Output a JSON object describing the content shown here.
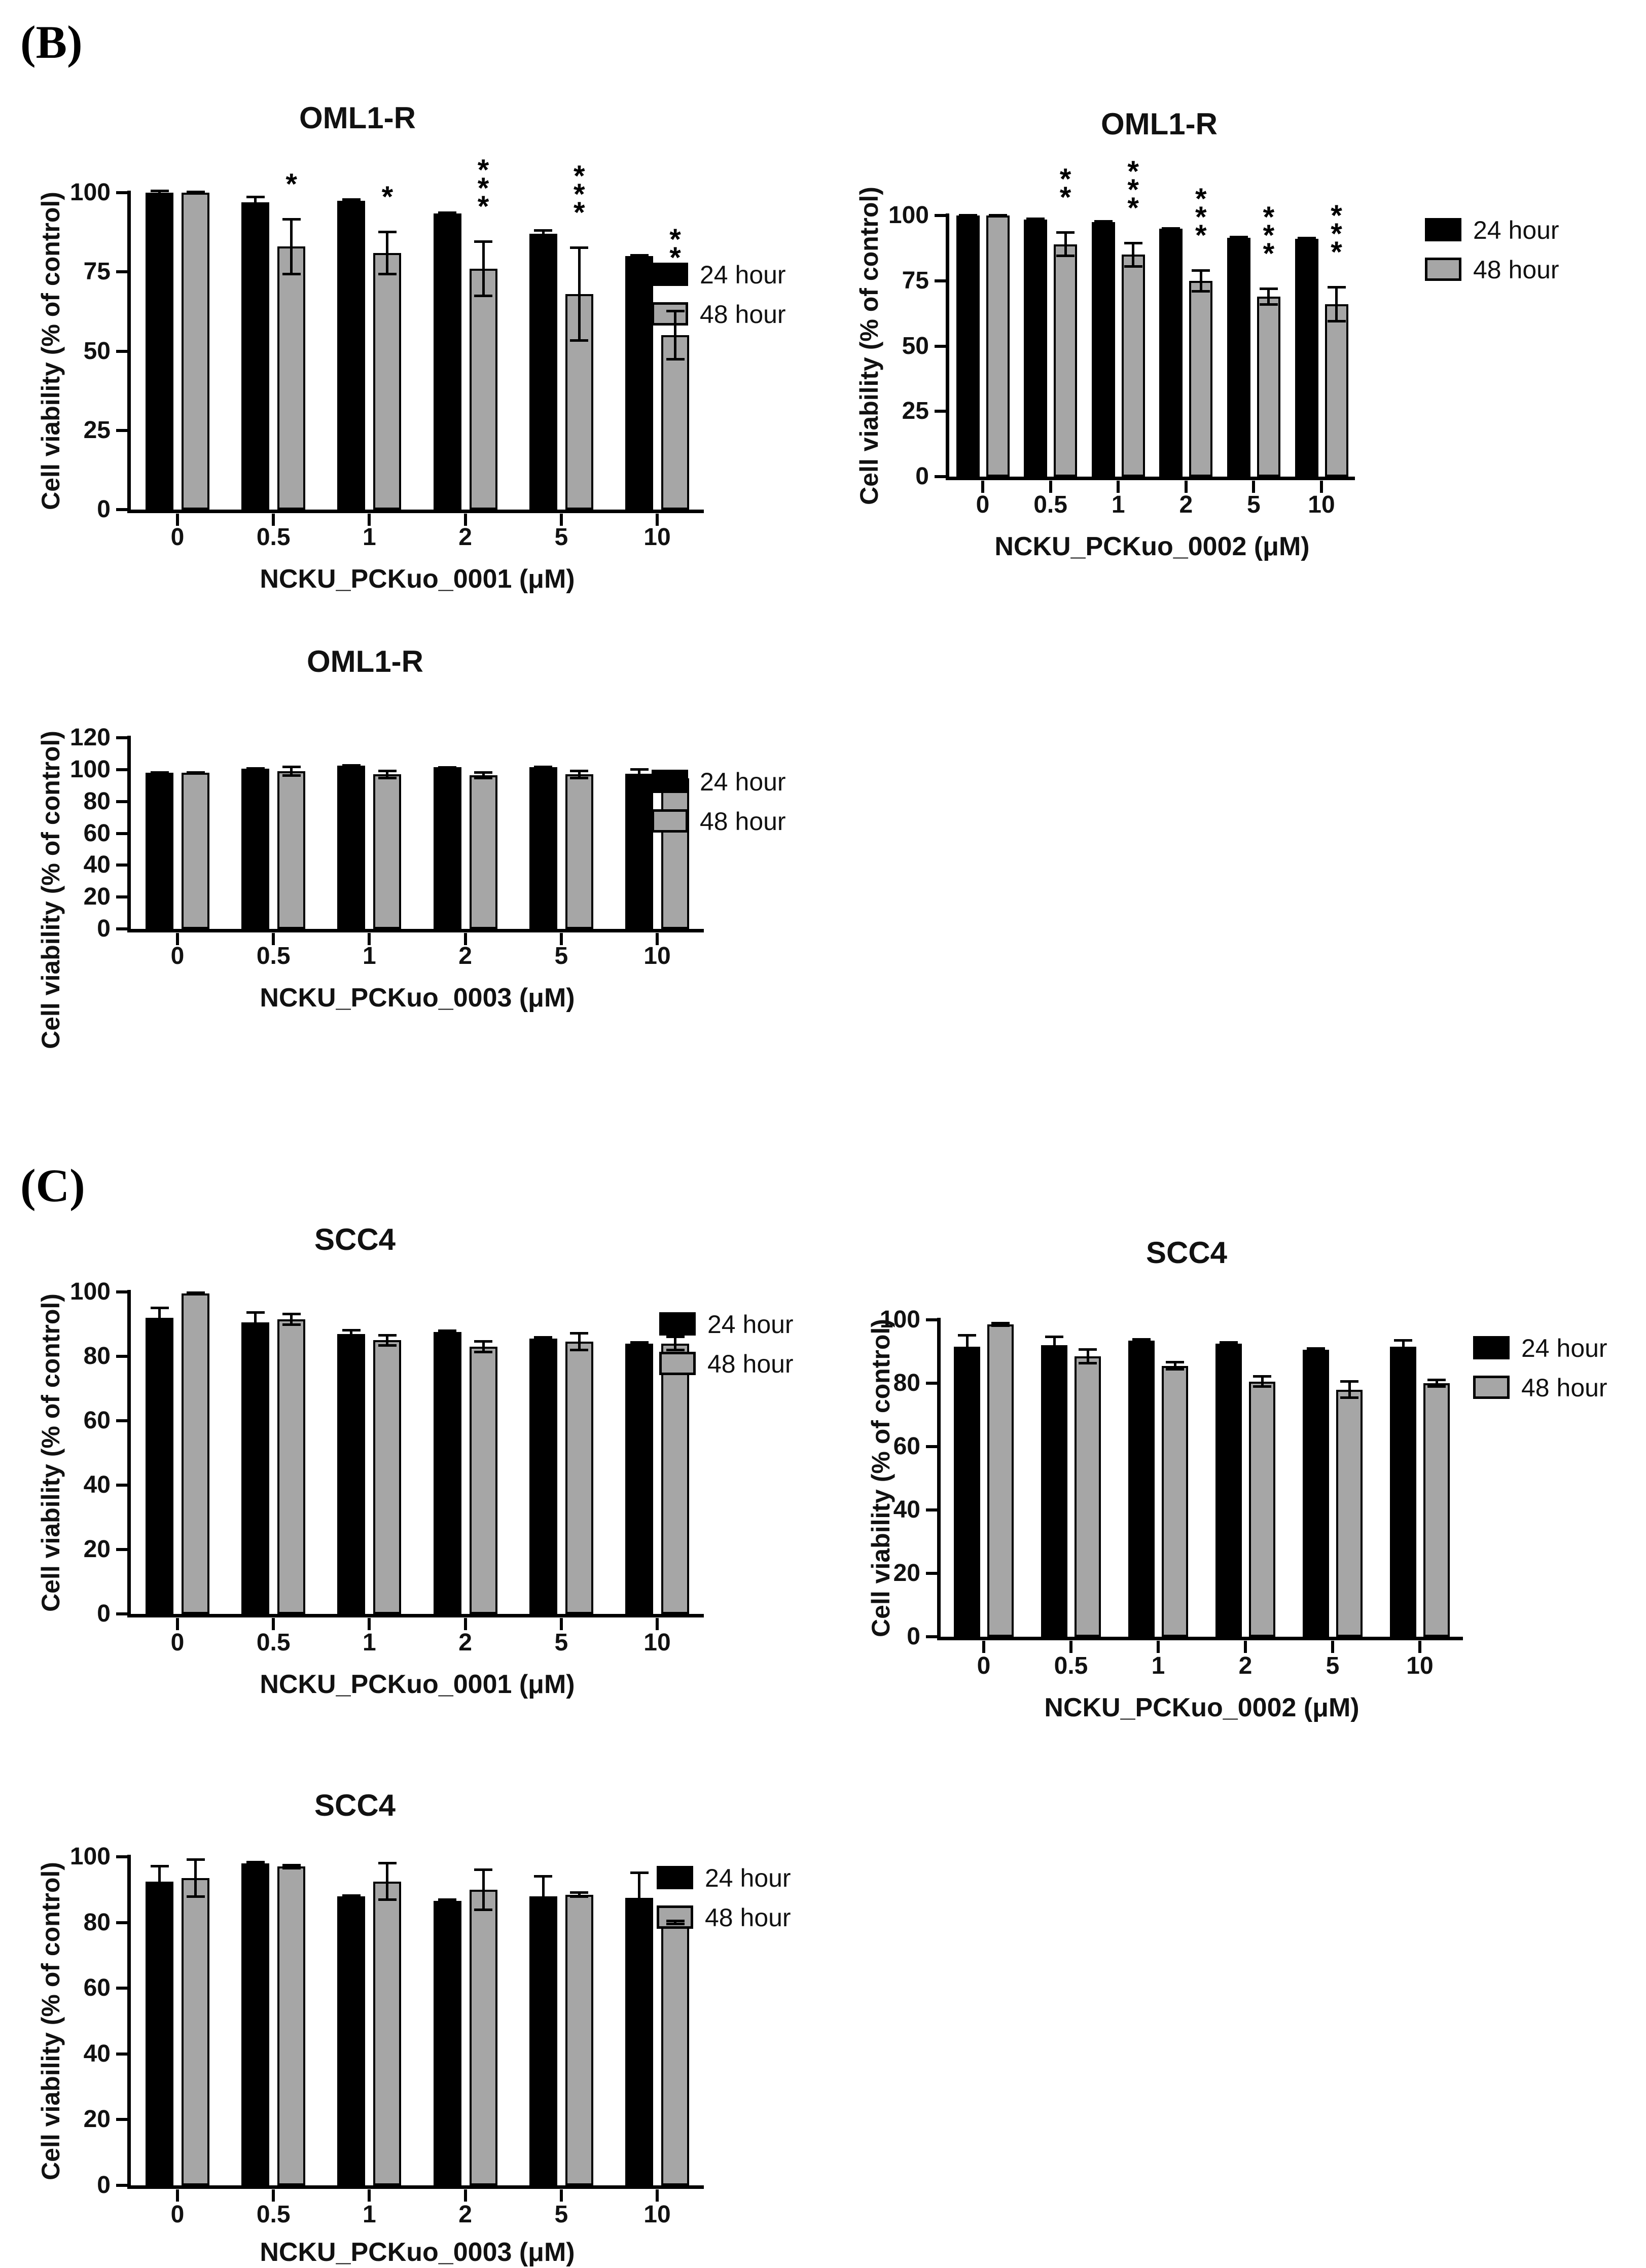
{
  "figure": {
    "background": "#ffffff",
    "text_color": "#111111"
  },
  "panels": [
    {
      "label": "(B)"
    },
    {
      "label": "(C)"
    }
  ],
  "legend": {
    "items": [
      {
        "label": "24 hour",
        "color": "#000000"
      },
      {
        "label": "48 hour",
        "color": "#a6a6a6"
      }
    ],
    "position": "right"
  },
  "chart_data": [
    {
      "id": "b1",
      "panel": "B",
      "type": "bar",
      "title": "OML1-R",
      "xlabel": "NCKU_PCKuo_0001 (μM)",
      "ylabel": "Cell viability (% of control)",
      "categories": [
        "0",
        "0.5",
        "1",
        "2",
        "5",
        "10"
      ],
      "ylim": [
        0,
        100
      ],
      "yticks": [
        0,
        25,
        50,
        75,
        100
      ],
      "grid": false,
      "series": [
        {
          "name": "24 hour",
          "values": [
            100,
            97,
            97.5,
            93.5,
            87,
            80
          ],
          "err": [
            1,
            2,
            0.8,
            0.6,
            1.5,
            0.6
          ]
        },
        {
          "name": "48 hour",
          "values": [
            100,
            83,
            81,
            76,
            68,
            55
          ],
          "err": [
            0.6,
            9,
            7,
            9,
            15,
            8
          ]
        }
      ],
      "significance": [
        "",
        "*",
        "*",
        "***",
        "***",
        "***"
      ]
    },
    {
      "id": "b2",
      "panel": "B",
      "type": "bar",
      "title": "OML1-R",
      "xlabel": "NCKU_PCKuo_0002 (μM)",
      "ylabel": "Cell viability (% of control)",
      "categories": [
        "0",
        "0.5",
        "1",
        "2",
        "5",
        "10"
      ],
      "ylim": [
        0,
        100
      ],
      "yticks": [
        0,
        25,
        50,
        75,
        100
      ],
      "grid": false,
      "series": [
        {
          "name": "24 hour",
          "values": [
            100,
            98.5,
            97.5,
            95,
            91.5,
            91
          ],
          "err": [
            0.6,
            0.8,
            0.8,
            0.6,
            0.8,
            0.8
          ]
        },
        {
          "name": "48 hour",
          "values": [
            100,
            89,
            85,
            75,
            69,
            66
          ],
          "err": [
            0.6,
            5,
            5,
            4.5,
            3.5,
            7
          ]
        }
      ],
      "significance": [
        "",
        "**",
        "***",
        "***",
        "***",
        "***"
      ]
    },
    {
      "id": "b3",
      "panel": "B",
      "type": "bar",
      "title": "OML1-R",
      "xlabel": "NCKU_PCKuo_0003 (μM)",
      "ylabel": "Cell viability (% of control)",
      "categories": [
        "0",
        "0.5",
        "1",
        "2",
        "5",
        "10"
      ],
      "ylim": [
        0,
        120
      ],
      "yticks": [
        0,
        20,
        40,
        60,
        80,
        100,
        120
      ],
      "grid": false,
      "series": [
        {
          "name": "24 hour",
          "values": [
            98,
            100.5,
            102.5,
            101.5,
            101.5,
            97.5
          ],
          "err": [
            1,
            1,
            0.7,
            0.8,
            0.9,
            3.5
          ]
        },
        {
          "name": "48 hour",
          "values": [
            98,
            99,
            97,
            96.5,
            97,
            94.5
          ],
          "err": [
            0.9,
            3.5,
            3,
            2.5,
            3,
            0.6
          ]
        }
      ],
      "significance": [
        "",
        "",
        "",
        "",
        "",
        ""
      ]
    },
    {
      "id": "c1",
      "panel": "C",
      "type": "bar",
      "title": "SCC4",
      "xlabel": "NCKU_PCKuo_0001 (μM)",
      "ylabel": "Cell viability (% of control)",
      "categories": [
        "0",
        "0.5",
        "1",
        "2",
        "5",
        "10"
      ],
      "ylim": [
        0,
        100
      ],
      "yticks": [
        0,
        20,
        40,
        60,
        80,
        100
      ],
      "grid": false,
      "series": [
        {
          "name": "24 hour",
          "values": [
            92,
            90.5,
            87,
            87.5,
            85.5,
            84
          ],
          "err": [
            3.5,
            3.5,
            1.5,
            0.8,
            0.8,
            0.8
          ]
        },
        {
          "name": "48 hour",
          "values": [
            99.5,
            91.5,
            85,
            83,
            84.5,
            84
          ],
          "err": [
            0.6,
            2,
            2,
            2,
            3,
            2.5
          ]
        }
      ],
      "significance": [
        "",
        "",
        "",
        "",
        "",
        ""
      ]
    },
    {
      "id": "c2",
      "panel": "C",
      "type": "bar",
      "title": "SCC4",
      "xlabel": "NCKU_PCKuo_0002 (μM)",
      "ylabel": "Cell viability (% of control)",
      "categories": [
        "0",
        "0.5",
        "1",
        "2",
        "5",
        "10"
      ],
      "ylim": [
        0,
        100
      ],
      "yticks": [
        0,
        20,
        40,
        60,
        80,
        100
      ],
      "grid": false,
      "series": [
        {
          "name": "24 hour",
          "values": [
            91.5,
            92,
            93.5,
            92.5,
            90.5,
            91.5
          ],
          "err": [
            4,
            3,
            0.8,
            0.8,
            0.8,
            2.5
          ]
        },
        {
          "name": "48 hour",
          "values": [
            98.5,
            88.5,
            85.5,
            80.5,
            78,
            80
          ],
          "err": [
            0.8,
            2.5,
            1.5,
            2,
            3,
            1.5
          ]
        }
      ],
      "significance": [
        "",
        "",
        "",
        "",
        "",
        ""
      ]
    },
    {
      "id": "c3",
      "panel": "C",
      "type": "bar",
      "title": "SCC4",
      "xlabel": "NCKU_PCKuo_0003 (μM)",
      "ylabel": "Cell viability (% of control)",
      "categories": [
        "0",
        "0.5",
        "1",
        "2",
        "5",
        "10"
      ],
      "ylim": [
        0,
        100
      ],
      "yticks": [
        0,
        20,
        40,
        60,
        80,
        100
      ],
      "grid": false,
      "series": [
        {
          "name": "24 hour",
          "values": [
            92.5,
            98,
            88,
            86.5,
            88,
            87.5
          ],
          "err": [
            5,
            0.7,
            0.6,
            0.8,
            6.5,
            8
          ]
        },
        {
          "name": "48 hour",
          "values": [
            93.5,
            97,
            92.5,
            90,
            88.5,
            80
          ],
          "err": [
            6,
            0.8,
            6,
            6.5,
            1,
            0.8
          ]
        }
      ],
      "significance": [
        "",
        "",
        "",
        "",
        "",
        ""
      ]
    }
  ]
}
